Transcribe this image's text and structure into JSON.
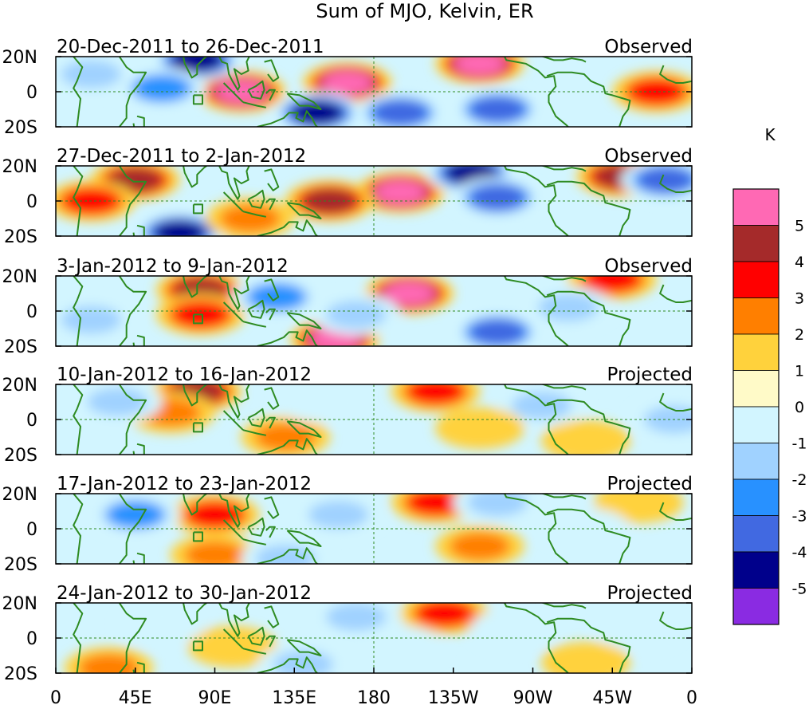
{
  "title": "Sum of MJO, Kelvin, ER",
  "unit_label": "K",
  "lat_labels": [
    "20N",
    "0",
    "20S"
  ],
  "lon_labels": [
    "0",
    "45E",
    "90E",
    "135E",
    "180",
    "135W",
    "90W",
    "45W",
    "0"
  ],
  "panels": [
    {
      "date_range": "20-Dec-2011 to 26-Dec-2011",
      "status": "Observed"
    },
    {
      "date_range": "27-Dec-2011 to 2-Jan-2012",
      "status": "Observed"
    },
    {
      "date_range": "3-Jan-2012 to 9-Jan-2012",
      "status": "Observed"
    },
    {
      "date_range": "10-Jan-2012 to 16-Jan-2012",
      "status": "Projected"
    },
    {
      "date_range": "17-Jan-2012 to 23-Jan-2012",
      "status": "Projected"
    },
    {
      "date_range": "24-Jan-2012 to 30-Jan-2012",
      "status": "Projected"
    }
  ],
  "colorbar": {
    "labels": [
      "5",
      "4",
      "3",
      "2",
      "1",
      "0",
      "-1",
      "-2",
      "-3",
      "-4",
      "-5"
    ],
    "colors": [
      "#ff69b4",
      "#a52a2a",
      "#ff0000",
      "#ff7f00",
      "#ffd23c",
      "#fffac8",
      "#d2f5ff",
      "#a0d2ff",
      "#2891ff",
      "#4169e1",
      "#00008b",
      "#8a2be2"
    ]
  },
  "anomaly_blobs": [
    [
      {
        "lon": 105,
        "lat": 0,
        "value": 5
      },
      {
        "lon": 165,
        "lat": 5,
        "value": 5
      },
      {
        "lon": 240,
        "lat": 16,
        "value": 5
      },
      {
        "lon": 80,
        "lat": 18,
        "value": -5
      },
      {
        "lon": 148,
        "lat": -12,
        "value": -5
      },
      {
        "lon": 195,
        "lat": -12,
        "value": -4
      },
      {
        "lon": 250,
        "lat": -10,
        "value": -4
      },
      {
        "lon": 60,
        "lat": 2,
        "value": -3
      },
      {
        "lon": 340,
        "lat": 0,
        "value": 3
      },
      {
        "lon": 20,
        "lat": 10,
        "value": -2
      }
    ],
    [
      {
        "lon": 195,
        "lat": 5,
        "value": 5
      },
      {
        "lon": 155,
        "lat": 0,
        "value": 4
      },
      {
        "lon": 45,
        "lat": 12,
        "value": 4
      },
      {
        "lon": 320,
        "lat": 14,
        "value": 4
      },
      {
        "lon": 70,
        "lat": -18,
        "value": -5
      },
      {
        "lon": 235,
        "lat": 16,
        "value": -5
      },
      {
        "lon": 250,
        "lat": 2,
        "value": -4
      },
      {
        "lon": 345,
        "lat": 12,
        "value": -4
      },
      {
        "lon": 110,
        "lat": -10,
        "value": 2
      },
      {
        "lon": 20,
        "lat": 0,
        "value": 3
      }
    ],
    [
      {
        "lon": 200,
        "lat": 10,
        "value": 5
      },
      {
        "lon": 158,
        "lat": -16,
        "value": 5
      },
      {
        "lon": 82,
        "lat": 12,
        "value": 4
      },
      {
        "lon": 82,
        "lat": -2,
        "value": 3
      },
      {
        "lon": 315,
        "lat": 18,
        "value": 3
      },
      {
        "lon": 250,
        "lat": -12,
        "value": -4
      },
      {
        "lon": 125,
        "lat": 8,
        "value": -3
      },
      {
        "lon": 290,
        "lat": 2,
        "value": -2
      },
      {
        "lon": 20,
        "lat": -5,
        "value": -2
      },
      {
        "lon": 170,
        "lat": -2,
        "value": -2
      }
    ],
    [
      {
        "lon": 80,
        "lat": 16,
        "value": 4
      },
      {
        "lon": 65,
        "lat": 4,
        "value": 2
      },
      {
        "lon": 215,
        "lat": 16,
        "value": 3
      },
      {
        "lon": 130,
        "lat": -10,
        "value": 2
      },
      {
        "lon": 300,
        "lat": -12,
        "value": 1
      },
      {
        "lon": 35,
        "lat": 10,
        "value": -2
      },
      {
        "lon": 150,
        "lat": 10,
        "value": -1
      },
      {
        "lon": 275,
        "lat": 8,
        "value": -2
      },
      {
        "lon": 350,
        "lat": 0,
        "value": -2
      },
      {
        "lon": 240,
        "lat": -5,
        "value": 1
      }
    ],
    [
      {
        "lon": 90,
        "lat": 8,
        "value": 3
      },
      {
        "lon": 215,
        "lat": 15,
        "value": 3
      },
      {
        "lon": 90,
        "lat": -15,
        "value": 2
      },
      {
        "lon": 240,
        "lat": -10,
        "value": 2
      },
      {
        "lon": 330,
        "lat": 15,
        "value": 1
      },
      {
        "lon": 45,
        "lat": 8,
        "value": -3
      },
      {
        "lon": 160,
        "lat": 8,
        "value": -2
      },
      {
        "lon": 250,
        "lat": 15,
        "value": -2
      },
      {
        "lon": 130,
        "lat": -17,
        "value": -2
      },
      {
        "lon": 300,
        "lat": 0,
        "value": -1
      }
    ],
    [
      {
        "lon": 220,
        "lat": 14,
        "value": 3
      },
      {
        "lon": 100,
        "lat": -5,
        "value": 1
      },
      {
        "lon": 30,
        "lat": -17,
        "value": 2
      },
      {
        "lon": 300,
        "lat": -14,
        "value": 1
      },
      {
        "lon": 170,
        "lat": 12,
        "value": -2
      },
      {
        "lon": 60,
        "lat": 8,
        "value": -1
      },
      {
        "lon": 140,
        "lat": -15,
        "value": -2
      },
      {
        "lon": 260,
        "lat": 5,
        "value": -1
      },
      {
        "lon": 330,
        "lat": 5,
        "value": -1
      },
      {
        "lon": 195,
        "lat": -5,
        "value": -1
      }
    ]
  ]
}
